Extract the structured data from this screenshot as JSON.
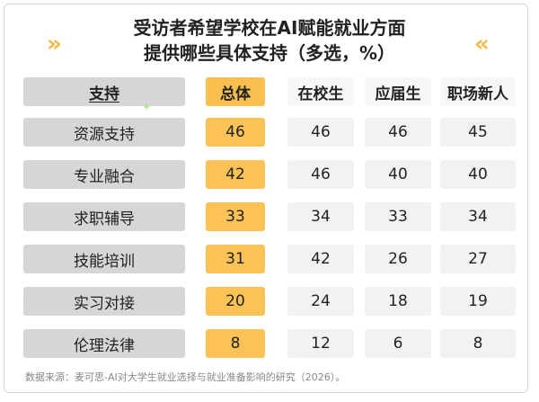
{
  "title_line1": "受访者希望学校在AI赋能就业方面",
  "title_line2": "提供哪些具体支持（多选，%）",
  "left_chevron": "»",
  "right_chevron": "«",
  "headers": {
    "support": "支持",
    "total": "总体",
    "col1": "在校生",
    "col2": "应届生",
    "col3": "职场新人"
  },
  "source": "数据来源：麦可思-AI对大学生就业选择与就业准备影响的研究（2026）。",
  "chart_data": {
    "type": "table",
    "title": "受访者希望学校在AI赋能就业方面提供哪些具体支持（多选，%）",
    "columns": [
      "支持",
      "总体",
      "在校生",
      "应届生",
      "职场新人"
    ],
    "rows": [
      {
        "label": "资源支持",
        "total": "46",
        "c1": "46",
        "c2": "46",
        "c3": "45"
      },
      {
        "label": "专业融合",
        "total": "42",
        "c1": "46",
        "c2": "40",
        "c3": "40"
      },
      {
        "label": "求职辅导",
        "total": "33",
        "c1": "34",
        "c2": "33",
        "c3": "34"
      },
      {
        "label": "技能培训",
        "total": "31",
        "c1": "42",
        "c2": "26",
        "c3": "27"
      },
      {
        "label": "实习对接",
        "total": "20",
        "c1": "24",
        "c2": "18",
        "c3": "19"
      },
      {
        "label": "伦理法律",
        "total": "8",
        "c1": "12",
        "c2": "6",
        "c3": "8"
      }
    ]
  }
}
